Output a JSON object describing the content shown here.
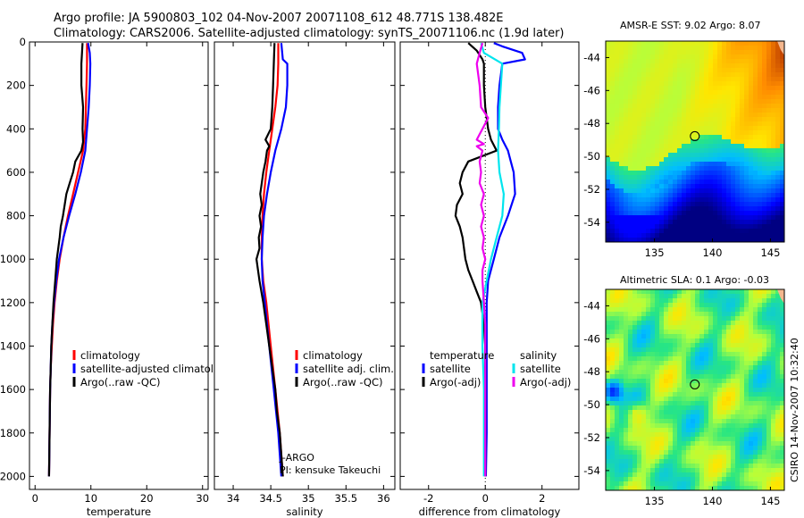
{
  "title": {
    "line1": "Argo profile: JA 5900803_102 04-Nov-2007 20071108_612 48.771S 138.482E",
    "line2": "Climatology: CARS2006. Satellite-adjusted climatology: synTS_20071106.nc (1.9d later)"
  },
  "stamp": "CSIRO 14-Nov-2007 10:32:40",
  "colors": {
    "red": "#ff0000",
    "blue": "#0000ff",
    "black": "#000000",
    "cyan": "#00e5ee",
    "magenta": "#ee00ee"
  },
  "chart_data": [
    {
      "type": "line",
      "id": "temperature",
      "xlabel": "temperature",
      "ylabel": "",
      "xlim": [
        -1,
        31
      ],
      "ylim": [
        2060,
        0
      ],
      "xticks": [
        0,
        10,
        20,
        30
      ],
      "yticks": [
        0,
        200,
        400,
        600,
        800,
        1000,
        1200,
        1400,
        1600,
        1800,
        2000
      ],
      "legend": [
        "climatology",
        "satellite-adjusted climatology",
        "Argo(..raw -QC)"
      ],
      "series": [
        {
          "name": "climatology",
          "color": "#ff0000",
          "depth": [
            5,
            100,
            200,
            300,
            400,
            500,
            600,
            700,
            800,
            900,
            1000,
            1100,
            1200,
            1300,
            1400,
            1500,
            1600,
            1800,
            2000
          ],
          "values": [
            9.3,
            9.3,
            9.2,
            9.1,
            9.0,
            8.6,
            7.7,
            6.8,
            5.9,
            5.1,
            4.4,
            3.9,
            3.5,
            3.2,
            3.0,
            2.8,
            2.7,
            2.6,
            2.5
          ]
        },
        {
          "name": "satellite-adjusted climatology",
          "color": "#0000ff",
          "depth": [
            5,
            50,
            100,
            200,
            300,
            400,
            500,
            600,
            700,
            800,
            900,
            1000,
            1100,
            1200,
            1300,
            1400,
            1500,
            1600,
            1800,
            2000
          ],
          "values": [
            9.5,
            9.8,
            9.9,
            9.8,
            9.6,
            9.3,
            9.0,
            8.2,
            7.2,
            6.1,
            5.1,
            4.3,
            3.8,
            3.4,
            3.1,
            2.9,
            2.8,
            2.7,
            2.6,
            2.5
          ]
        },
        {
          "name": "Argo(..raw -QC)",
          "color": "#000000",
          "depth": [
            5,
            50,
            100,
            200,
            300,
            400,
            460,
            500,
            550,
            600,
            650,
            700,
            750,
            800,
            850,
            900,
            1000,
            1100,
            1200,
            1300,
            1400,
            1500,
            1600,
            1800,
            2000
          ],
          "values": [
            8.5,
            8.4,
            8.3,
            8.3,
            8.6,
            8.5,
            8.6,
            8.3,
            7.2,
            6.8,
            6.2,
            5.6,
            5.3,
            5.0,
            4.6,
            4.4,
            3.9,
            3.6,
            3.3,
            3.1,
            2.9,
            2.8,
            2.7,
            2.6,
            2.5
          ]
        }
      ]
    },
    {
      "type": "line",
      "id": "salinity",
      "xlabel": "salinity",
      "xlim": [
        33.75,
        36.15
      ],
      "ylim": [
        2060,
        0
      ],
      "xticks": [
        34,
        34.5,
        35,
        35.5,
        36
      ],
      "legend": [
        "climatology",
        "satellite adj. clim.",
        "Argo(..raw -QC)"
      ],
      "annotation": [
        "J-ARGO",
        "PI: kensuke Takeuchi"
      ],
      "series": [
        {
          "name": "climatology",
          "color": "#ff0000",
          "depth": [
            5,
            100,
            200,
            300,
            400,
            500,
            600,
            700,
            800,
            900,
            1000,
            1100,
            1200,
            1400,
            1600,
            1800,
            2000
          ],
          "values": [
            34.6,
            34.6,
            34.59,
            34.56,
            34.52,
            34.48,
            34.44,
            34.41,
            34.39,
            34.38,
            34.38,
            34.4,
            34.44,
            34.5,
            34.56,
            34.62,
            34.66
          ]
        },
        {
          "name": "satellite adj. clim.",
          "color": "#0000ff",
          "depth": [
            5,
            80,
            100,
            200,
            300,
            400,
            500,
            600,
            700,
            800,
            900,
            1000,
            1100,
            1200,
            1400,
            1600,
            1800,
            2000
          ],
          "values": [
            34.64,
            34.66,
            34.72,
            34.72,
            34.7,
            34.64,
            34.56,
            34.5,
            34.45,
            34.41,
            34.39,
            34.38,
            34.39,
            34.42,
            34.48,
            34.54,
            34.6,
            34.64
          ]
        },
        {
          "name": "Argo(..raw -QC)",
          "color": "#000000",
          "depth": [
            5,
            100,
            200,
            300,
            400,
            450,
            480,
            500,
            550,
            600,
            650,
            700,
            750,
            800,
            850,
            900,
            950,
            1000,
            1050,
            1100,
            1200,
            1300,
            1400,
            1500,
            1600,
            1700,
            1800,
            1900,
            2000
          ],
          "values": [
            34.55,
            34.54,
            34.53,
            34.52,
            34.5,
            34.43,
            34.48,
            34.45,
            34.43,
            34.4,
            34.38,
            34.36,
            34.38,
            34.35,
            34.37,
            34.34,
            34.35,
            34.31,
            34.33,
            34.35,
            34.4,
            34.44,
            34.48,
            34.52,
            34.56,
            34.58,
            34.62,
            34.64,
            34.66
          ]
        }
      ]
    },
    {
      "type": "line",
      "id": "difference",
      "xlabel": "difference from climatology",
      "xlim": [
        -3,
        3.3
      ],
      "ylim": [
        2060,
        0
      ],
      "xticks": [
        -2,
        0,
        2
      ],
      "legend": [
        "temperature",
        "satellite",
        "Argo(-adj)",
        "salinity",
        "satellite",
        "Argo(-adj)"
      ],
      "series": [
        {
          "name": "temperature satellite",
          "color": "#0000ff",
          "depth": [
            5,
            20,
            50,
            80,
            100,
            150,
            200,
            300,
            400,
            450,
            500,
            550,
            600,
            700,
            800,
            900,
            1000,
            1100,
            1200,
            1300,
            1500,
            1800,
            2000
          ],
          "values": [
            0.3,
            0.6,
            1.3,
            1.4,
            0.6,
            0.55,
            0.5,
            0.45,
            0.45,
            0.6,
            0.8,
            0.9,
            1.0,
            1.05,
            0.8,
            0.5,
            0.3,
            0.1,
            0.05,
            0.05,
            0.05,
            0.05,
            0.02
          ]
        },
        {
          "name": "temperature Argo(-adj)",
          "color": "#000000",
          "depth": [
            5,
            40,
            80,
            100,
            150,
            200,
            300,
            400,
            450,
            500,
            550,
            600,
            650,
            700,
            750,
            800,
            850,
            900,
            950,
            1000,
            1050,
            1100,
            1150,
            1200,
            1300,
            1400,
            1600,
            1800,
            2000
          ],
          "values": [
            -0.6,
            -0.3,
            -0.1,
            -0.05,
            -0.05,
            -0.05,
            0.0,
            0.1,
            0.2,
            0.4,
            -0.6,
            -0.8,
            -0.9,
            -0.8,
            -1.0,
            -1.05,
            -0.9,
            -0.8,
            -0.75,
            -0.7,
            -0.6,
            -0.45,
            -0.3,
            -0.15,
            -0.05,
            0.0,
            0.0,
            0.0,
            0.0
          ]
        },
        {
          "name": "salinity satellite",
          "color": "#00e5ee",
          "depth": [
            5,
            50,
            100,
            200,
            300,
            400,
            500,
            600,
            700,
            800,
            900,
            1000,
            1100,
            1200,
            1400,
            1600,
            1800,
            2000
          ],
          "values": [
            -0.15,
            -0.05,
            0.6,
            0.55,
            0.5,
            0.48,
            0.45,
            0.5,
            0.65,
            0.6,
            0.4,
            0.2,
            0.05,
            -0.1,
            -0.1,
            -0.05,
            -0.05,
            -0.05
          ]
        },
        {
          "name": "salinity Argo(-adj)",
          "color": "#ee00ee",
          "depth": [
            5,
            50,
            100,
            150,
            200,
            300,
            350,
            400,
            450,
            470,
            480,
            500,
            550,
            600,
            650,
            700,
            750,
            800,
            850,
            900,
            950,
            1000,
            1050,
            1100,
            1200,
            1300,
            1400,
            1500,
            1600,
            1800,
            2000
          ],
          "values": [
            -0.1,
            -0.2,
            -0.3,
            -0.25,
            -0.2,
            -0.15,
            0.1,
            -0.1,
            -0.3,
            -0.05,
            -0.3,
            -0.1,
            -0.2,
            -0.15,
            -0.2,
            -0.05,
            -0.15,
            -0.05,
            -0.15,
            -0.05,
            -0.1,
            0.0,
            -0.1,
            -0.1,
            -0.05,
            0.0,
            0.0,
            0.0,
            0.0,
            0.0,
            0.0
          ]
        }
      ]
    },
    {
      "type": "heatmap",
      "id": "amsre-sst",
      "title": "AMSR-E SST: 9.02 Argo: 8.07",
      "xlim": [
        130.8,
        146.2
      ],
      "ylim": [
        -55.2,
        -43.0
      ],
      "xticks": [
        135,
        140,
        145
      ],
      "yticks": [
        -44,
        -46,
        -48,
        -50,
        -52,
        -54
      ],
      "marker": {
        "lon": 138.482,
        "lat": -48.771
      }
    },
    {
      "type": "heatmap",
      "id": "altimetric-sla",
      "title": "Altimetric SLA: 0.1 Argo: -0.03",
      "xlim": [
        130.8,
        146.2
      ],
      "ylim": [
        -55.2,
        -43.0
      ],
      "xticks": [
        135,
        140,
        145
      ],
      "yticks": [
        -44,
        -46,
        -48,
        -50,
        -52,
        -54
      ],
      "marker": {
        "lon": 138.482,
        "lat": -48.771
      }
    }
  ]
}
